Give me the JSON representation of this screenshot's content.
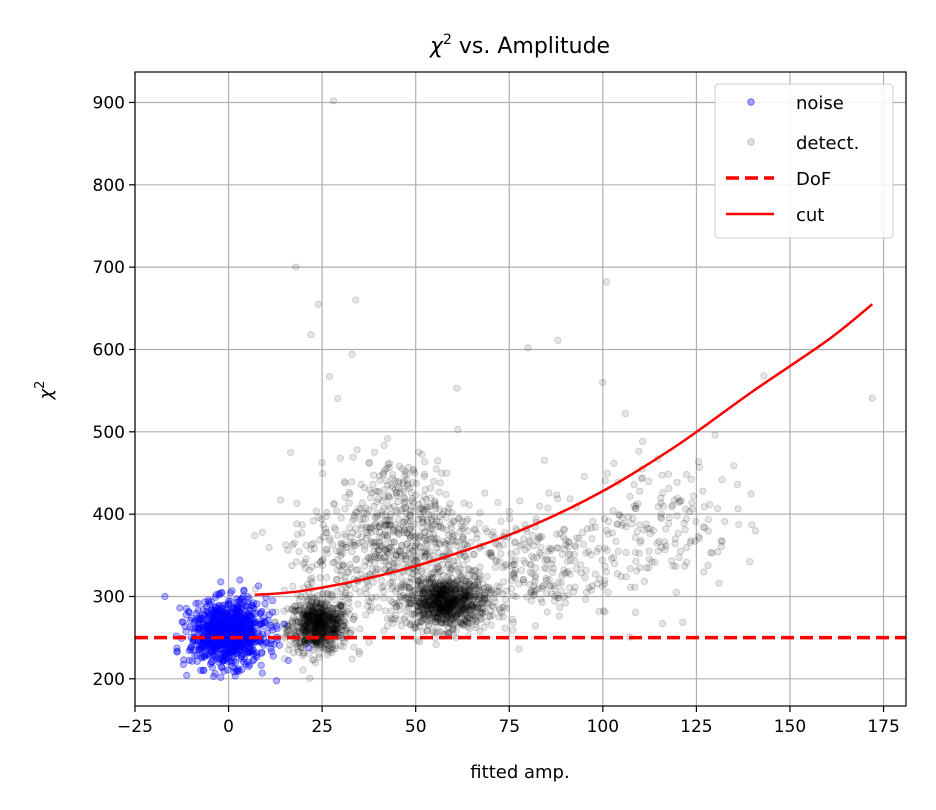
{
  "chart_data": {
    "type": "scatter",
    "title_pre": "χ",
    "title_sup": "2",
    "title_post": " vs. Amplitude",
    "xlabel": "fitted amp.",
    "ylabel_base": "χ",
    "ylabel_sup": "2",
    "xlim": [
      -25,
      181
    ],
    "ylim": [
      167,
      937
    ],
    "xticks": [
      -25,
      0,
      25,
      50,
      75,
      100,
      125,
      150,
      175
    ],
    "xtick_labels": [
      "−25",
      "0",
      "25",
      "50",
      "75",
      "100",
      "125",
      "150",
      "175"
    ],
    "yticks": [
      200,
      300,
      400,
      500,
      600,
      700,
      800,
      900
    ],
    "ytick_labels": [
      "200",
      "300",
      "400",
      "500",
      "600",
      "700",
      "800",
      "900"
    ],
    "grid": true,
    "legend_position": "top-right",
    "colors": {
      "noise": "#0000ff",
      "detect": "#000000",
      "dof": "#ff0000",
      "cut": "#ff0000"
    },
    "series": [
      {
        "name": "noise",
        "kind": "points",
        "clusters": [
          {
            "center_x": 0,
            "center_y": 255,
            "spread_x": 5,
            "spread_y": 19,
            "count": 900
          }
        ],
        "points": [
          [
            -17,
            300
          ],
          [
            -13,
            286
          ],
          [
            -12,
            223
          ],
          [
            8,
            313
          ],
          [
            10,
            299
          ],
          [
            13,
            261
          ],
          [
            3,
            320
          ],
          [
            -4,
            203
          ],
          [
            9,
            207
          ]
        ]
      },
      {
        "name": "detect.",
        "kind": "points",
        "clusters": [
          {
            "center_x": 24,
            "center_y": 265,
            "spread_x": 4,
            "spread_y": 16,
            "count": 700
          },
          {
            "center_x": 58,
            "center_y": 292,
            "spread_x": 5.5,
            "spread_y": 16,
            "count": 900
          },
          {
            "center_x": 47,
            "center_y": 380,
            "spread_x": 9,
            "spread_y": 45,
            "count": 550
          },
          {
            "center_x": 80,
            "center_y": 340,
            "spread_x": 12,
            "spread_y": 35,
            "count": 280
          },
          {
            "center_x": 115,
            "center_y": 390,
            "spread_x": 10,
            "spread_y": 40,
            "count": 160
          },
          {
            "center_x": 30,
            "center_y": 340,
            "spread_x": 8,
            "spread_y": 35,
            "count": 150
          }
        ],
        "points": [
          [
            28,
            902
          ],
          [
            18,
            700
          ],
          [
            101,
            682
          ],
          [
            24,
            655
          ],
          [
            34,
            660
          ],
          [
            22,
            618
          ],
          [
            100,
            560
          ],
          [
            33,
            594
          ],
          [
            80,
            602
          ],
          [
            88,
            611
          ],
          [
            61,
            553
          ],
          [
            27,
            567
          ],
          [
            106,
            522
          ],
          [
            143,
            568
          ],
          [
            172,
            541
          ],
          [
            135,
            459
          ],
          [
            136,
            436
          ],
          [
            130,
            496
          ],
          [
            7,
            374
          ],
          [
            9,
            378
          ]
        ]
      },
      {
        "name": "DoF",
        "kind": "hline",
        "y": 250
      },
      {
        "name": "cut",
        "kind": "curve",
        "x": [
          7,
          20,
          40,
          60,
          80,
          100,
          120,
          140,
          160,
          172
        ],
        "y": [
          302,
          307,
          325,
          351,
          384,
          428,
          484,
          549,
          611,
          655
        ]
      }
    ]
  }
}
